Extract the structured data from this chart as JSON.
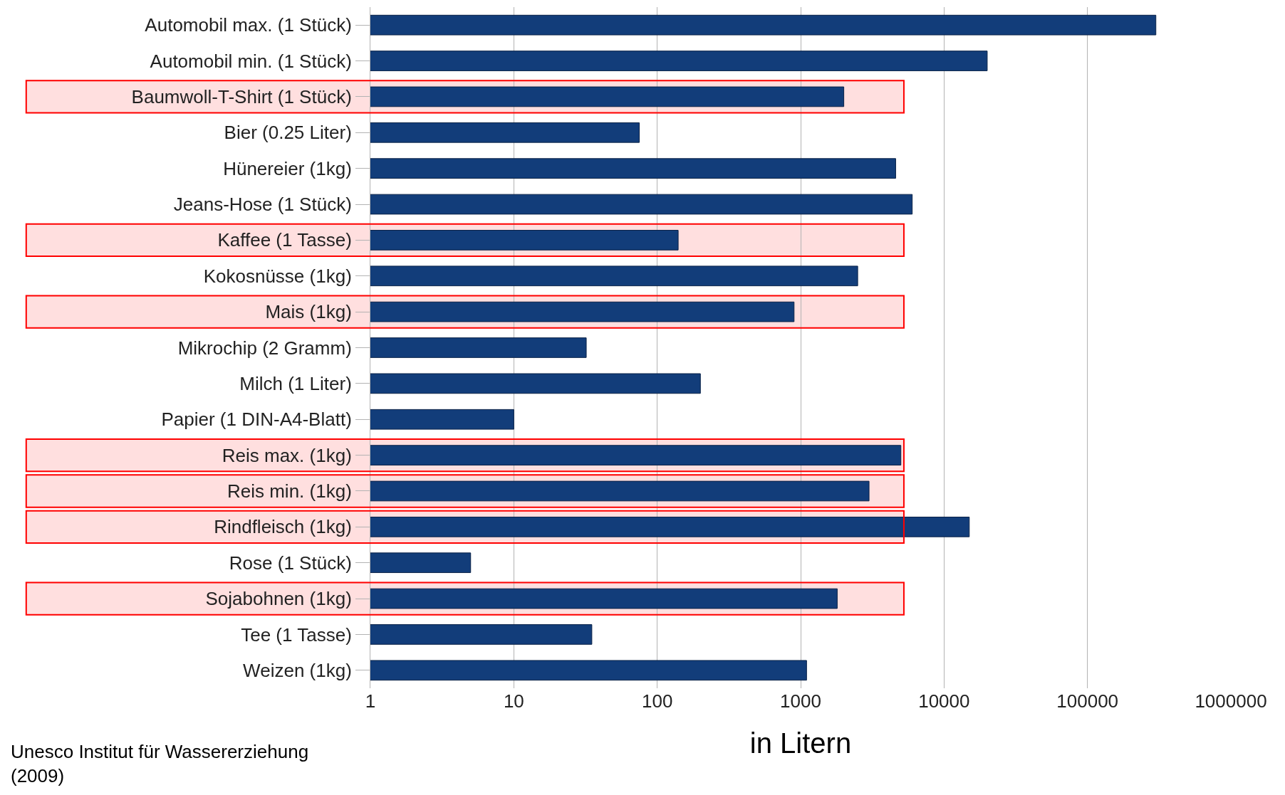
{
  "chart_data": {
    "type": "bar",
    "orientation": "horizontal",
    "log": "x",
    "categories": [
      "Automobil max. (1 Stück)",
      "Automobil min. (1 Stück)",
      "Baumwoll-T-Shirt (1 Stück)",
      "Bier (0.25 Liter)",
      "Hünereier (1kg)",
      "Jeans-Hose (1 Stück)",
      "Kaffee (1 Tasse)",
      "Kokosnüsse (1kg)",
      "Mais (1kg)",
      "Mikrochip (2 Gramm)",
      "Milch (1 Liter)",
      "Papier (1 DIN-A4-Blatt)",
      "Reis max. (1kg)",
      "Reis min. (1kg)",
      "Rindfleisch (1kg)",
      "Rose (1 Stück)",
      "Sojabohnen (1kg)",
      "Tee (1 Tasse)",
      "Weizen (1kg)"
    ],
    "values": [
      300000,
      20000,
      2000,
      75,
      4600,
      6000,
      140,
      2500,
      900,
      32,
      200,
      10,
      5000,
      3000,
      15000,
      5,
      1800,
      35,
      1100
    ],
    "color": "#123d7a",
    "xlim": [
      1,
      1000000
    ],
    "xticks": [
      1,
      10,
      100,
      1000,
      10000,
      100000,
      1000000
    ],
    "grid": "x",
    "xlabel": "in Litern",
    "bands": [
      {
        "axis": "y",
        "from": "Baumwoll-T-Shirt (1 Stück)",
        "to": "Baumwoll-T-Shirt (1 Stück)",
        "color": "#ff0000"
      },
      {
        "axis": "y",
        "from": "Kaffee (1 Tasse)",
        "to": "Kaffee (1 Tasse)",
        "color": "#ff0000"
      },
      {
        "axis": "y",
        "from": "Mais (1kg)",
        "to": "Mais (1kg)",
        "color": "#ff0000"
      },
      {
        "axis": "y",
        "from": "Reis max. (1kg)",
        "to": "Reis max. (1kg)",
        "color": "#ff0000"
      },
      {
        "axis": "y",
        "from": "Reis min. (1kg)",
        "to": "Reis min. (1kg)",
        "color": "#ff0000"
      },
      {
        "axis": "y",
        "from": "Rindfleisch (1kg)",
        "to": "Rindfleisch (1kg)",
        "color": "#ff0000"
      },
      {
        "axis": "y",
        "from": "Sojabohnen (1kg)",
        "to": "Sojabohnen (1kg)",
        "color": "#ff0000"
      }
    ],
    "annotations": [
      "Unesco Institut für Wassererziehung\n(2009)"
    ]
  }
}
